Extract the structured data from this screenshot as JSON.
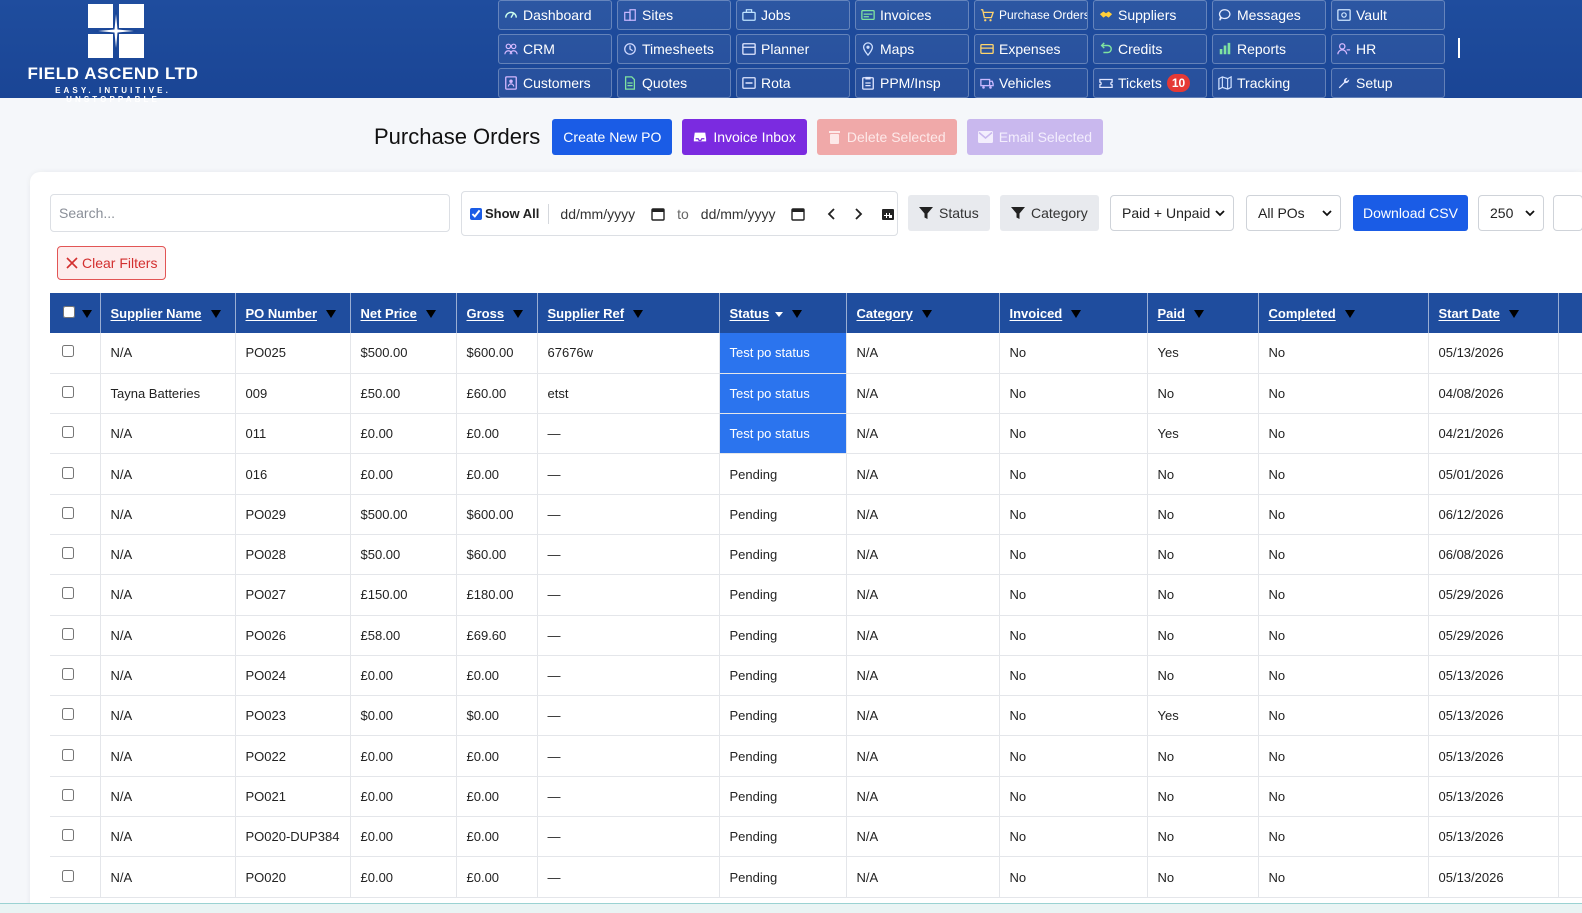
{
  "brand": {
    "name": "FIELD ASCEND LTD",
    "tagline": "EASY. INTUITIVE. UNSTOPPABLE"
  },
  "nav": [
    {
      "label": "Dashboard",
      "icon": "dashboard-icon"
    },
    {
      "label": "Sites",
      "icon": "building-icon"
    },
    {
      "label": "Jobs",
      "icon": "briefcase-icon"
    },
    {
      "label": "Invoices",
      "icon": "invoice-icon"
    },
    {
      "label": "Purchase Orders",
      "icon": "cart-icon"
    },
    {
      "label": "Suppliers",
      "icon": "handshake-icon"
    },
    {
      "label": "Messages",
      "icon": "chat-icon"
    },
    {
      "label": "Vault",
      "icon": "vault-icon"
    },
    {
      "label": "CRM",
      "icon": "users-icon"
    },
    {
      "label": "Timesheets",
      "icon": "clock-icon"
    },
    {
      "label": "Planner",
      "icon": "calendar-icon"
    },
    {
      "label": "Maps",
      "icon": "map-pin-icon"
    },
    {
      "label": "Expenses",
      "icon": "wallet-icon"
    },
    {
      "label": "Credits",
      "icon": "undo-icon"
    },
    {
      "label": "Reports",
      "icon": "bar-chart-icon"
    },
    {
      "label": "HR",
      "icon": "user-cog-icon"
    },
    {
      "label": "Customers",
      "icon": "contact-book-icon"
    },
    {
      "label": "Quotes",
      "icon": "document-icon"
    },
    {
      "label": "Rota",
      "icon": "calendar-week-icon"
    },
    {
      "label": "PPM/Insp",
      "icon": "clipboard-icon"
    },
    {
      "label": "Vehicles",
      "icon": "van-icon"
    },
    {
      "label": "Tickets",
      "icon": "ticket-icon",
      "badge": "10"
    },
    {
      "label": "Tracking",
      "icon": "map-icon"
    },
    {
      "label": "Setup",
      "icon": "wrench-icon"
    }
  ],
  "page": {
    "title": "Purchase Orders",
    "create_label": "Create New PO",
    "inbox_label": "Invoice Inbox",
    "delete_label": "Delete Selected",
    "email_label": "Email Selected"
  },
  "filters": {
    "search_placeholder": "Search...",
    "show_all_label": "Show All",
    "show_all_checked": true,
    "date_from": "dd/mm/yyyy",
    "to_label": "to",
    "date_to": "dd/mm/yyyy",
    "status_label": "Status",
    "category_label": "Category",
    "paid_select": "Paid + Unpaid",
    "po_select": "All POs",
    "download_label": "Download CSV",
    "page_size": "250",
    "clear_label": "Clear Filters"
  },
  "table": {
    "columns": [
      "Supplier Name",
      "PO Number",
      "Net Price",
      "Gross",
      "Supplier Ref",
      "Status",
      "Category",
      "Invoiced",
      "Paid",
      "Completed",
      "Start Date"
    ],
    "rows": [
      {
        "supplier": "N/A",
        "po": "PO025",
        "net": "$500.00",
        "gross": "$600.00",
        "ref": "67676w",
        "status": "Test po status",
        "category": "N/A",
        "invoiced": "No",
        "paid": "Yes",
        "completed": "No",
        "start": "05/13/2026",
        "highlight": true
      },
      {
        "supplier": "Tayna Batteries",
        "po": "009",
        "net": "£50.00",
        "gross": "£60.00",
        "ref": "etst",
        "status": "Test po status",
        "category": "N/A",
        "invoiced": "No",
        "paid": "No",
        "completed": "No",
        "start": "04/08/2026",
        "highlight": true
      },
      {
        "supplier": "N/A",
        "po": "011",
        "net": "£0.00",
        "gross": "£0.00",
        "ref": "—",
        "status": "Test po status",
        "category": "N/A",
        "invoiced": "No",
        "paid": "Yes",
        "completed": "No",
        "start": "04/21/2026",
        "highlight": true
      },
      {
        "supplier": "N/A",
        "po": "016",
        "net": "£0.00",
        "gross": "£0.00",
        "ref": "—",
        "status": "Pending",
        "category": "N/A",
        "invoiced": "No",
        "paid": "No",
        "completed": "No",
        "start": "05/01/2026",
        "highlight": false
      },
      {
        "supplier": "N/A",
        "po": "PO029",
        "net": "$500.00",
        "gross": "$600.00",
        "ref": "—",
        "status": "Pending",
        "category": "N/A",
        "invoiced": "No",
        "paid": "No",
        "completed": "No",
        "start": "06/12/2026",
        "highlight": false
      },
      {
        "supplier": "N/A",
        "po": "PO028",
        "net": "$50.00",
        "gross": "$60.00",
        "ref": "—",
        "status": "Pending",
        "category": "N/A",
        "invoiced": "No",
        "paid": "No",
        "completed": "No",
        "start": "06/08/2026",
        "highlight": false
      },
      {
        "supplier": "N/A",
        "po": "PO027",
        "net": "£150.00",
        "gross": "£180.00",
        "ref": "—",
        "status": "Pending",
        "category": "N/A",
        "invoiced": "No",
        "paid": "No",
        "completed": "No",
        "start": "05/29/2026",
        "highlight": false
      },
      {
        "supplier": "N/A",
        "po": "PO026",
        "net": "£58.00",
        "gross": "£69.60",
        "ref": "—",
        "status": "Pending",
        "category": "N/A",
        "invoiced": "No",
        "paid": "No",
        "completed": "No",
        "start": "05/29/2026",
        "highlight": false
      },
      {
        "supplier": "N/A",
        "po": "PO024",
        "net": "£0.00",
        "gross": "£0.00",
        "ref": "—",
        "status": "Pending",
        "category": "N/A",
        "invoiced": "No",
        "paid": "No",
        "completed": "No",
        "start": "05/13/2026",
        "highlight": false
      },
      {
        "supplier": "N/A",
        "po": "PO023",
        "net": "$0.00",
        "gross": "$0.00",
        "ref": "—",
        "status": "Pending",
        "category": "N/A",
        "invoiced": "No",
        "paid": "Yes",
        "completed": "No",
        "start": "05/13/2026",
        "highlight": false
      },
      {
        "supplier": "N/A",
        "po": "PO022",
        "net": "£0.00",
        "gross": "£0.00",
        "ref": "—",
        "status": "Pending",
        "category": "N/A",
        "invoiced": "No",
        "paid": "No",
        "completed": "No",
        "start": "05/13/2026",
        "highlight": false
      },
      {
        "supplier": "N/A",
        "po": "PO021",
        "net": "£0.00",
        "gross": "£0.00",
        "ref": "—",
        "status": "Pending",
        "category": "N/A",
        "invoiced": "No",
        "paid": "No",
        "completed": "No",
        "start": "05/13/2026",
        "highlight": false
      },
      {
        "supplier": "N/A",
        "po": "PO020-DUP384",
        "net": "£0.00",
        "gross": "£0.00",
        "ref": "—",
        "status": "Pending",
        "category": "N/A",
        "invoiced": "No",
        "paid": "No",
        "completed": "No",
        "start": "05/13/2026",
        "highlight": false
      },
      {
        "supplier": "N/A",
        "po": "PO020",
        "net": "£0.00",
        "gross": "£0.00",
        "ref": "—",
        "status": "Pending",
        "category": "N/A",
        "invoiced": "No",
        "paid": "No",
        "completed": "No",
        "start": "05/13/2026",
        "highlight": false
      }
    ]
  },
  "colors": {
    "header_bg": "#1f4d9e",
    "primary": "#1a5ce6",
    "inbox": "#7b2be0",
    "status_highlight": "#2b74ee",
    "badge": "#e53935",
    "danger": "#d32f2f"
  }
}
